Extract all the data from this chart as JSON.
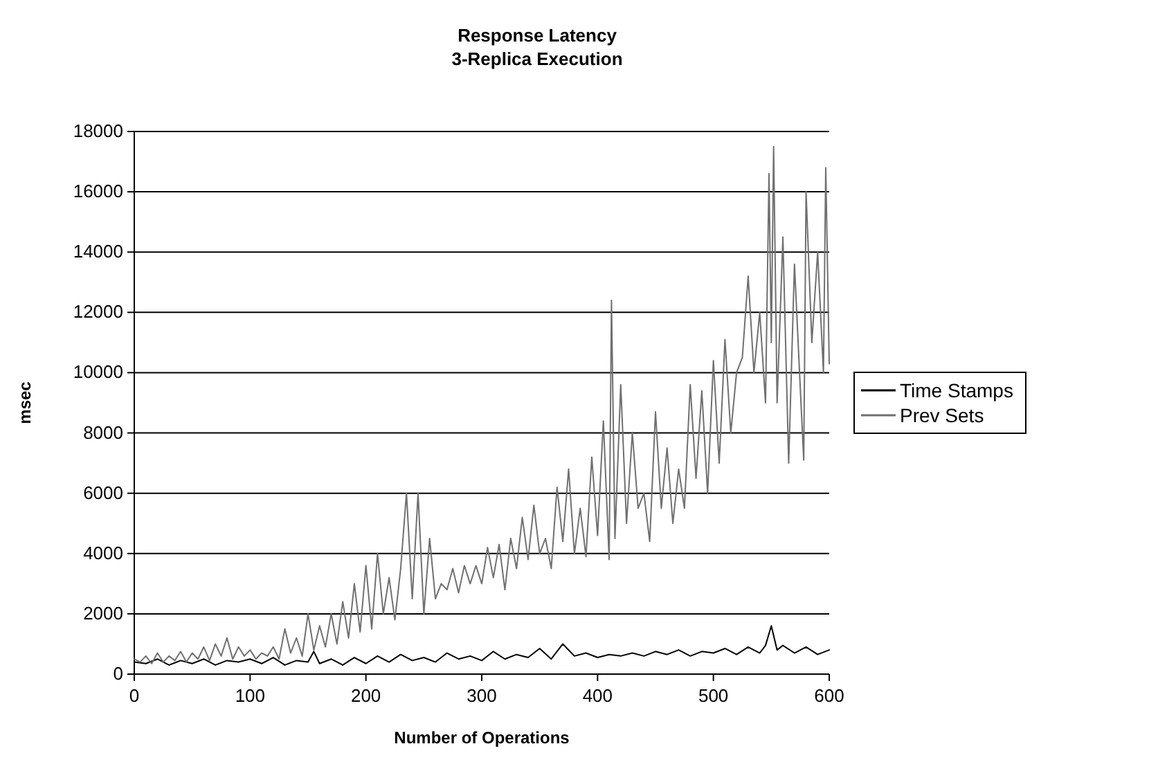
{
  "chart_data": {
    "type": "line",
    "title": "Response Latency",
    "subtitle": "3-Replica Execution",
    "xlabel": "Number of Operations",
    "ylabel": "msec",
    "xlim": [
      0,
      600
    ],
    "xticks": [
      0,
      100,
      200,
      300,
      400,
      500,
      600
    ],
    "ylim": [
      0,
      18000
    ],
    "yticks": [
      0,
      2000,
      4000,
      6000,
      8000,
      10000,
      12000,
      14000,
      16000,
      18000
    ],
    "grid": "y",
    "legend": "right",
    "marker": "none",
    "line_style": "solid",
    "series": [
      {
        "name": "Time Stamps",
        "color": "#000000",
        "x": [
          0,
          10,
          20,
          30,
          40,
          50,
          60,
          70,
          80,
          90,
          100,
          110,
          120,
          130,
          140,
          150,
          155,
          160,
          170,
          180,
          190,
          200,
          210,
          220,
          230,
          240,
          250,
          260,
          270,
          280,
          290,
          300,
          310,
          320,
          330,
          340,
          350,
          360,
          370,
          380,
          390,
          400,
          410,
          420,
          430,
          440,
          450,
          460,
          470,
          480,
          490,
          500,
          510,
          520,
          530,
          540,
          545,
          550,
          555,
          560,
          570,
          580,
          590,
          600
        ],
        "values": [
          400,
          350,
          500,
          300,
          450,
          350,
          500,
          300,
          450,
          400,
          500,
          350,
          550,
          300,
          450,
          400,
          750,
          350,
          500,
          300,
          550,
          350,
          600,
          400,
          650,
          450,
          550,
          400,
          700,
          500,
          600,
          450,
          750,
          500,
          650,
          550,
          850,
          500,
          1000,
          600,
          700,
          550,
          650,
          600,
          700,
          600,
          750,
          650,
          800,
          600,
          750,
          700,
          850,
          650,
          900,
          700,
          950,
          1600,
          800,
          950,
          700,
          900,
          650,
          800
        ]
      },
      {
        "name": "Prev Sets",
        "color": "#707070",
        "x": [
          0,
          5,
          10,
          15,
          20,
          25,
          30,
          35,
          40,
          45,
          50,
          55,
          60,
          65,
          70,
          75,
          80,
          85,
          90,
          95,
          100,
          105,
          110,
          115,
          120,
          125,
          130,
          135,
          140,
          145,
          150,
          155,
          160,
          165,
          170,
          175,
          180,
          185,
          190,
          195,
          200,
          205,
          210,
          215,
          220,
          225,
          230,
          235,
          240,
          245,
          250,
          255,
          260,
          265,
          270,
          275,
          280,
          285,
          290,
          295,
          300,
          305,
          310,
          315,
          320,
          325,
          330,
          335,
          340,
          345,
          350,
          355,
          360,
          365,
          370,
          375,
          380,
          385,
          390,
          395,
          400,
          405,
          410,
          412,
          415,
          420,
          425,
          430,
          435,
          440,
          445,
          450,
          455,
          460,
          465,
          470,
          475,
          480,
          485,
          490,
          495,
          500,
          505,
          510,
          515,
          520,
          525,
          530,
          535,
          540,
          545,
          548,
          550,
          552,
          555,
          560,
          565,
          570,
          575,
          578,
          580,
          585,
          590,
          595,
          597,
          600
        ],
        "values": [
          500,
          400,
          600,
          350,
          700,
          400,
          600,
          450,
          750,
          400,
          700,
          500,
          900,
          450,
          1000,
          600,
          1200,
          500,
          900,
          600,
          800,
          500,
          700,
          600,
          900,
          500,
          1500,
          700,
          1200,
          600,
          2000,
          800,
          1600,
          900,
          2000,
          1000,
          2400,
          1200,
          3000,
          1400,
          3600,
          1500,
          4000,
          2000,
          3200,
          1800,
          3500,
          6000,
          2500,
          6000,
          2000,
          4500,
          2500,
          3000,
          2800,
          3500,
          2700,
          3600,
          3000,
          3600,
          3000,
          4200,
          3200,
          4300,
          2800,
          4500,
          3500,
          5200,
          3800,
          5600,
          4000,
          4500,
          3500,
          6200,
          4400,
          6800,
          4000,
          5500,
          3900,
          7200,
          4600,
          8400,
          3800,
          12400,
          4500,
          9600,
          5000,
          8000,
          5500,
          6000,
          4400,
          8700,
          5500,
          7500,
          5000,
          6800,
          5500,
          9600,
          6500,
          9400,
          6000,
          10400,
          7000,
          11100,
          8000,
          10000,
          10500,
          13200,
          10000,
          12000,
          9000,
          16600,
          11000,
          17500,
          9000,
          14500,
          7000,
          13600,
          9500,
          7100,
          16000,
          11000,
          14000,
          10000,
          16800,
          10300
        ]
      }
    ]
  }
}
